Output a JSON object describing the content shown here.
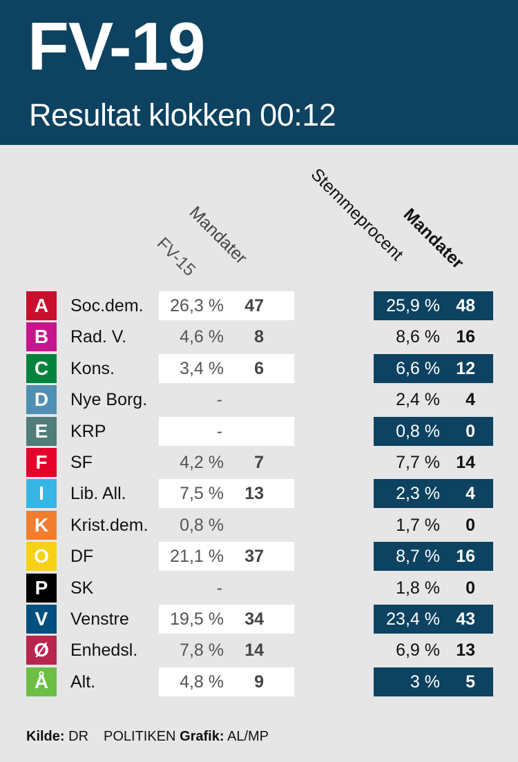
{
  "header": {
    "title": "FV-19",
    "subtitle": "Resultat klokken 00:12"
  },
  "colors": {
    "header_bg": "#0d4261",
    "panel_bg": "#e6e6e6",
    "highlight_box": "#0d4261",
    "old_box": "#ffffff"
  },
  "chart_data": {
    "type": "table",
    "columns": [
      "FV-15",
      "Mandater",
      "Stemmeprocent",
      "Mandater"
    ],
    "rows": [
      {
        "letter": "A",
        "party": "Soc.dem.",
        "color": "#c8102e",
        "fv15_pct": "26,3 %",
        "fv15_mand": "47",
        "pct": "25,9 %",
        "mand": "48"
      },
      {
        "letter": "B",
        "party": "Rad. V.",
        "color": "#c6168d",
        "fv15_pct": "4,6 %",
        "fv15_mand": "8",
        "pct": "8,6 %",
        "mand": "16"
      },
      {
        "letter": "C",
        "party": "Kons.",
        "color": "#00843d",
        "fv15_pct": "3,4 %",
        "fv15_mand": "6",
        "pct": "6,6 %",
        "mand": "12"
      },
      {
        "letter": "D",
        "party": "Nye Borg.",
        "color": "#4f8fb3",
        "fv15_pct": "-",
        "fv15_mand": "",
        "pct": "2,4 %",
        "mand": "4"
      },
      {
        "letter": "E",
        "party": "KRP",
        "color": "#4e7d7a",
        "fv15_pct": "-",
        "fv15_mand": "",
        "pct": "0,8 %",
        "mand": "0"
      },
      {
        "letter": "F",
        "party": "SF",
        "color": "#e4002b",
        "fv15_pct": "4,2 %",
        "fv15_mand": "7",
        "pct": "7,7 %",
        "mand": "14"
      },
      {
        "letter": "I",
        "party": "Lib. All.",
        "color": "#35b6e5",
        "fv15_pct": "7,5 %",
        "fv15_mand": "13",
        "pct": "2,3 %",
        "mand": "4"
      },
      {
        "letter": "K",
        "party": "Krist.dem.",
        "color": "#f37d2f",
        "fv15_pct": "0,8 %",
        "fv15_mand": "",
        "pct": "1,7 %",
        "mand": "0"
      },
      {
        "letter": "O",
        "party": "DF",
        "color": "#f7d117",
        "fv15_pct": "21,1 %",
        "fv15_mand": "37",
        "pct": "8,7 %",
        "mand": "16"
      },
      {
        "letter": "P",
        "party": "SK",
        "color": "#000000",
        "fv15_pct": "-",
        "fv15_mand": "",
        "pct": "1,8 %",
        "mand": "0"
      },
      {
        "letter": "V",
        "party": "Venstre",
        "color": "#01507f",
        "fv15_pct": "19,5 %",
        "fv15_mand": "34",
        "pct": "23,4 %",
        "mand": "43"
      },
      {
        "letter": "Ø",
        "party": "Enhedsl.",
        "color": "#b8264e",
        "fv15_pct": "7,8 %",
        "fv15_mand": "14",
        "pct": "6,9 %",
        "mand": "13"
      },
      {
        "letter": "Å",
        "party": "Alt.",
        "color": "#6cbe45",
        "fv15_pct": "4,8 %",
        "fv15_mand": "9",
        "pct": "3 %",
        "mand": "5"
      }
    ]
  },
  "footer": {
    "source_label": "Kilde:",
    "source": "DR",
    "publisher": "POLITIKEN",
    "graphic_label": "Grafik:",
    "graphic": "AL/MP"
  }
}
